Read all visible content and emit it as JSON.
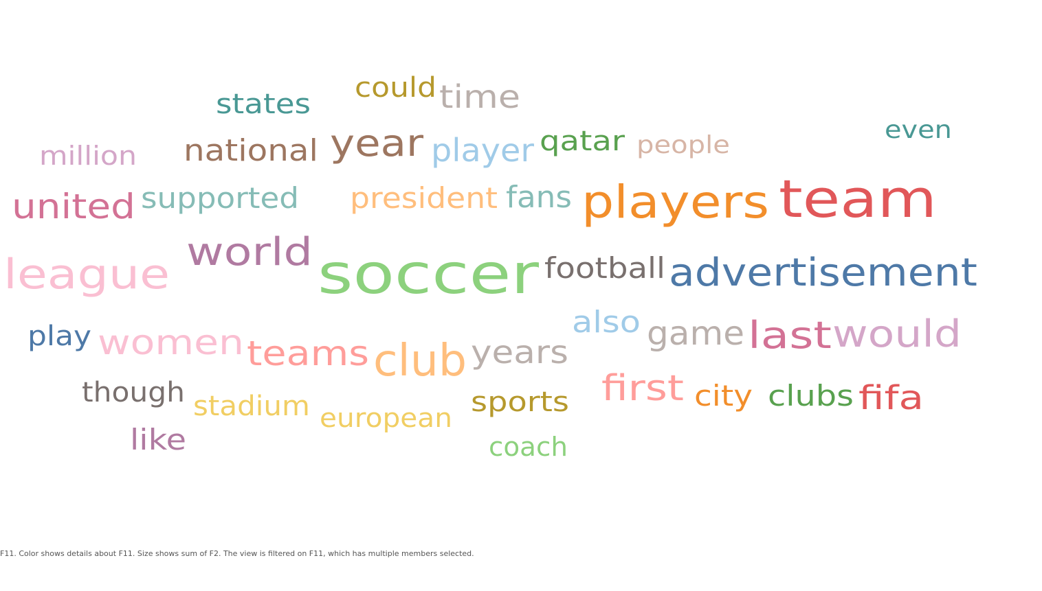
{
  "caption": "F11.  Color shows details about F11.  Size shows sum of F2. The view is filtered on F11, which has multiple members selected.",
  "chart_data": {
    "type": "wordcloud",
    "color_encodes": "F11",
    "size_encodes": "sum of F2",
    "words": [
      {
        "text": "soccer",
        "color": "#8cd17d"
      },
      {
        "text": "team",
        "color": "#e15759"
      },
      {
        "text": "players",
        "color": "#f28e2b"
      },
      {
        "text": "league",
        "color": "#fabfd2"
      },
      {
        "text": "advertisement",
        "color": "#4e79a7"
      },
      {
        "text": "world",
        "color": "#b07aa1"
      },
      {
        "text": "club",
        "color": "#ffbe7d"
      },
      {
        "text": "year",
        "color": "#9d7660"
      },
      {
        "text": "would",
        "color": "#d4a6c8"
      },
      {
        "text": "last",
        "color": "#d37295"
      },
      {
        "text": "united",
        "color": "#d37295"
      },
      {
        "text": "women",
        "color": "#fabfd2"
      },
      {
        "text": "teams",
        "color": "#ff9d9a"
      },
      {
        "text": "first",
        "color": "#ff9d9a"
      },
      {
        "text": "years",
        "color": "#bab0ac"
      },
      {
        "text": "time",
        "color": "#bab0ac"
      },
      {
        "text": "game",
        "color": "#bab0ac"
      },
      {
        "text": "fifa",
        "color": "#e15759"
      },
      {
        "text": "player",
        "color": "#a0cbe8"
      },
      {
        "text": "national",
        "color": "#9d7660"
      },
      {
        "text": "football",
        "color": "#79706e"
      },
      {
        "text": "president",
        "color": "#ffbe7d"
      },
      {
        "text": "supported",
        "color": "#86bcb6"
      },
      {
        "text": "fans",
        "color": "#86bcb6"
      },
      {
        "text": "also",
        "color": "#a0cbe8"
      },
      {
        "text": "qatar",
        "color": "#59a14f"
      },
      {
        "text": "clubs",
        "color": "#59a14f"
      },
      {
        "text": "though",
        "color": "#79706e"
      },
      {
        "text": "sports",
        "color": "#b6992d"
      },
      {
        "text": "states",
        "color": "#499894"
      },
      {
        "text": "could",
        "color": "#b6992d"
      },
      {
        "text": "city",
        "color": "#f28e2b"
      },
      {
        "text": "like",
        "color": "#b07aa1"
      },
      {
        "text": "play",
        "color": "#4e79a7"
      },
      {
        "text": "stadium",
        "color": "#f1ce63"
      },
      {
        "text": "european",
        "color": "#f1ce63"
      },
      {
        "text": "million",
        "color": "#d4a6c8"
      },
      {
        "text": "people",
        "color": "#d7b5a6"
      },
      {
        "text": "coach",
        "color": "#8cd17d"
      },
      {
        "text": "even",
        "color": "#499894"
      }
    ]
  }
}
